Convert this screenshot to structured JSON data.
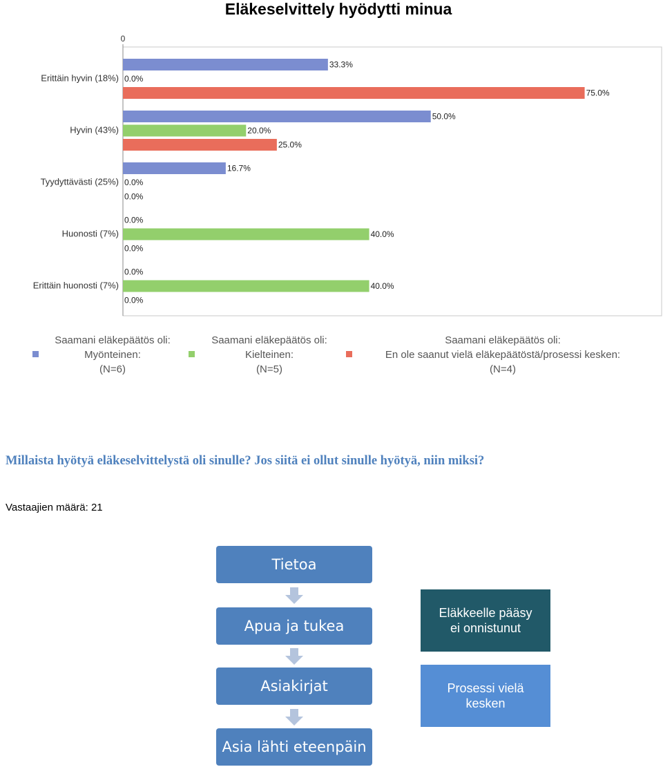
{
  "chart_data": {
    "type": "bar",
    "orientation": "horizontal",
    "title": "Eläkeselvittely hyödytti minua",
    "categories": [
      "Erittäin hyvin (18%)",
      "Hyvin (43%)",
      "Tyydyttävästi (25%)",
      "Huonosti (7%)",
      "Erittäin huonosti (7%)"
    ],
    "series": [
      {
        "name": "Saamani eläkepäätös oli:\nMyönteinen:\n(N=6)",
        "color": "#7b8dd0",
        "values": [
          33.3,
          50.0,
          16.7,
          0,
          0
        ],
        "value_labels": [
          "33.3%",
          "50.0%",
          "16.7%",
          "0.0%",
          "0.0%"
        ]
      },
      {
        "name": "Saamani eläkepäätös oli:\nKielteinen:\n(N=5)",
        "color": "#93cf6c",
        "values": [
          0,
          20.0,
          0,
          40.0,
          40.0
        ],
        "value_labels": [
          "0.0%",
          "20.0%",
          "0.0%",
          "40.0%",
          "40.0%"
        ]
      },
      {
        "name": "Saamani eläkepäätös oli:\nEn ole saanut vielä eläkepäätöstä/prosessi kesken:\n(N=4)",
        "color": "#e96d5b",
        "values": [
          75.0,
          25.0,
          0,
          0,
          0
        ],
        "value_labels": [
          "75.0%",
          "25.0%",
          "0.0%",
          "0.0%",
          "0.0%"
        ]
      }
    ],
    "xlim": [
      0,
      87.5
    ],
    "xticks": [
      0
    ]
  },
  "question": "Millaista hyötyä eläkeselvittelystä oli sinulle? Jos siitä ei ollut sinulle hyötyä, niin miksi?",
  "respondents": "Vastaajien määrä: 21",
  "diagram": {
    "steps": [
      "Tietoa",
      "Apua ja tukea",
      "Asiakirjat",
      "Asia lähti eteenpäin"
    ],
    "outcomes": [
      "Eläkkeelle pääsy ei onnistunut",
      "Prosessi vielä kesken"
    ]
  }
}
